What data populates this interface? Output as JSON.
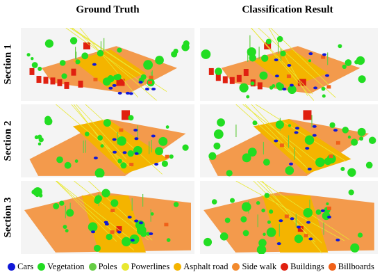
{
  "columns": [
    {
      "title": "Ground Truth"
    },
    {
      "title": "Classification Result"
    }
  ],
  "rows": [
    {
      "label": "Section 1"
    },
    {
      "label": "Section 2"
    },
    {
      "label": "Section 3"
    }
  ],
  "legend": [
    {
      "label": "Cars",
      "color": "#1018d8"
    },
    {
      "label": "Vegetation",
      "color": "#22dd22"
    },
    {
      "label": "Poles",
      "color": "#66cc44"
    },
    {
      "label": "Powerlines",
      "color": "#e8e830"
    },
    {
      "label": "Asphalt road",
      "color": "#f4b400"
    },
    {
      "label": "Side walk",
      "color": "#f28a2e"
    },
    {
      "label": "Buildings",
      "color": "#e02010"
    },
    {
      "label": "Billboards",
      "color": "#f06018"
    }
  ]
}
